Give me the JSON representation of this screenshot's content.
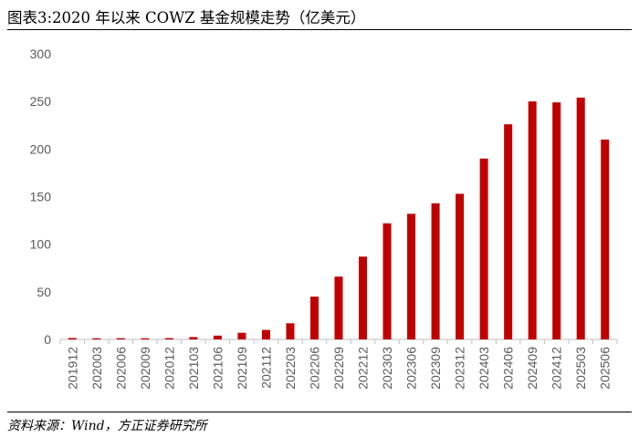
{
  "title": "图表3:2020 年以来 COWZ 基金规模走势（亿美元）",
  "source": "资料来源：Wind，方正证券研究所",
  "chart_data": {
    "type": "bar",
    "categories": [
      "201912",
      "202003",
      "202006",
      "202009",
      "202012",
      "202103",
      "202106",
      "202109",
      "202112",
      "202203",
      "202206",
      "202209",
      "202212",
      "202303",
      "202306",
      "202309",
      "202312",
      "202403",
      "202406",
      "202409",
      "202412",
      "202503",
      "202506"
    ],
    "values": [
      1.5,
      1.2,
      1.3,
      1.2,
      1.4,
      2.5,
      4,
      7,
      10,
      17,
      45,
      66,
      87,
      122,
      132,
      143,
      153,
      190,
      226,
      250,
      249,
      254,
      210
    ],
    "ylim": [
      0,
      300
    ],
    "yticks": [
      0,
      50,
      100,
      150,
      200,
      250,
      300
    ],
    "bar_color": "#C00000",
    "grid": false,
    "legend": "none"
  }
}
